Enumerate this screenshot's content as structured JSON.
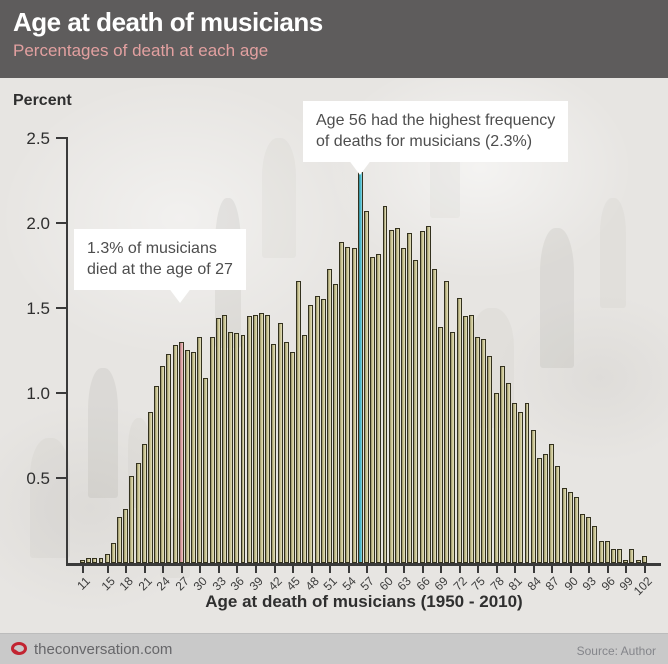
{
  "header": {
    "title": "Age at death of musicians",
    "subtitle": "Percentages of death at each age"
  },
  "chart": {
    "y_axis_label": "Percent",
    "x_axis_title": "Age at death of musicians (1950 - 2010)",
    "y_ticks": [
      {
        "label": "2.5",
        "value": 2.5
      },
      {
        "label": "2.0",
        "value": 2.0
      },
      {
        "label": "1.5",
        "value": 1.5
      },
      {
        "label": "1.0",
        "value": 1.0
      },
      {
        "label": "0.5",
        "value": 0.5
      }
    ],
    "x_tick_ages": [
      11,
      15,
      18,
      21,
      24,
      27,
      30,
      33,
      36,
      39,
      42,
      45,
      48,
      51,
      54,
      57,
      60,
      63,
      66,
      69,
      72,
      75,
      78,
      81,
      84,
      87,
      90,
      93,
      96,
      99,
      102
    ],
    "annotations": [
      {
        "line1": "1.3% of musicians",
        "line2": "died at the age of 27",
        "target_age": 27
      },
      {
        "line1": "Age 56 had the highest frequency",
        "line2": "of deaths for musicians (2.3%)",
        "target_age": 56
      }
    ],
    "colors": {
      "bar_fill": "#ccc693",
      "bar_border": "#33311e",
      "highlight_pink": "#dfa2a4",
      "highlight_cyan": "#49b9cb",
      "axis": "#3a3a3a",
      "header_bg": "#5e5c5c",
      "subtitle_pink": "#e2a0a0",
      "logo_red": "#c22431"
    }
  },
  "chart_data": {
    "type": "bar",
    "title": "Age at death of musicians",
    "subtitle": "Percentages of death at each age",
    "xlabel": "Age at death of musicians (1950 - 2010)",
    "ylabel": "Percent",
    "ylim": [
      0,
      2.5
    ],
    "grid": false,
    "legend": false,
    "x": [
      11,
      12,
      13,
      14,
      15,
      16,
      17,
      18,
      19,
      20,
      21,
      22,
      23,
      24,
      25,
      26,
      27,
      28,
      29,
      30,
      31,
      32,
      33,
      34,
      35,
      36,
      37,
      38,
      39,
      40,
      41,
      42,
      43,
      44,
      45,
      46,
      47,
      48,
      49,
      50,
      51,
      52,
      53,
      54,
      55,
      56,
      57,
      58,
      59,
      60,
      61,
      62,
      63,
      64,
      65,
      66,
      67,
      68,
      69,
      70,
      71,
      72,
      73,
      74,
      75,
      76,
      77,
      78,
      79,
      80,
      81,
      82,
      83,
      84,
      85,
      86,
      87,
      88,
      89,
      90,
      91,
      92,
      93,
      94,
      95,
      96,
      97,
      98,
      99,
      100,
      101,
      102
    ],
    "values": [
      0.02,
      0.03,
      0.03,
      0.03,
      0.05,
      0.12,
      0.27,
      0.32,
      0.51,
      0.59,
      0.7,
      0.89,
      1.04,
      1.16,
      1.23,
      1.28,
      1.3,
      1.25,
      1.24,
      1.33,
      1.09,
      1.33,
      1.44,
      1.46,
      1.36,
      1.35,
      1.34,
      1.45,
      1.46,
      1.47,
      1.46,
      1.29,
      1.41,
      1.3,
      1.24,
      1.66,
      1.34,
      1.52,
      1.57,
      1.55,
      1.73,
      1.64,
      1.89,
      1.86,
      1.85,
      2.3,
      2.07,
      1.8,
      1.82,
      2.1,
      1.96,
      1.97,
      1.85,
      1.94,
      1.78,
      1.95,
      1.98,
      1.73,
      1.39,
      1.66,
      1.36,
      1.56,
      1.45,
      1.46,
      1.33,
      1.32,
      1.22,
      1.0,
      1.16,
      1.06,
      0.94,
      0.89,
      0.94,
      0.78,
      0.62,
      0.64,
      0.7,
      0.57,
      0.44,
      0.42,
      0.39,
      0.29,
      0.27,
      0.22,
      0.13,
      0.13,
      0.08,
      0.08,
      0.02,
      0.08,
      0.02,
      0.04
    ],
    "highlights": {
      "27": "highlight_pink",
      "56": "highlight_cyan"
    },
    "annotations": [
      "1.3% of musicians died at the age of 27",
      "Age 56 had the highest frequency of deaths for musicians (2.3%)"
    ]
  },
  "footer": {
    "site": "theconversation.com",
    "source": "Source: Author"
  }
}
